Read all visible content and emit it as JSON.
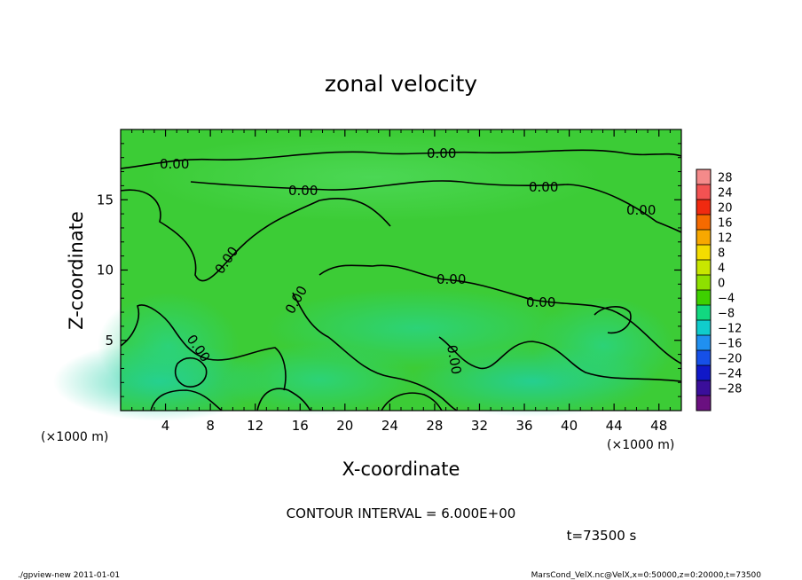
{
  "chart_data": {
    "type": "heatmap",
    "title": "zonal velocity",
    "xlabel": "X-coordinate",
    "ylabel": "Z-coordinate",
    "x_unit_note": "(×1000 m)",
    "y_unit_note": "(×1000 m)",
    "xlim": [
      0,
      50
    ],
    "ylim": [
      0,
      20
    ],
    "x_ticks": [
      4,
      8,
      12,
      16,
      20,
      24,
      28,
      32,
      36,
      40,
      44,
      48
    ],
    "y_ticks": [
      5,
      10,
      15
    ],
    "contour_label": "0.00",
    "colorbar_levels": [
      28,
      24,
      20,
      16,
      12,
      8,
      4,
      0,
      -4,
      -8,
      -12,
      -16,
      -20,
      -24,
      -28
    ],
    "colorbar_colors": [
      "#f48a8a",
      "#f25252",
      "#f02a10",
      "#f56a00",
      "#f8a800",
      "#f4dc00",
      "#c8e600",
      "#8ee000",
      "#3ed000",
      "#12d880",
      "#10cccc",
      "#2090f0",
      "#1650e8",
      "#1018c8",
      "#3a0e9a",
      "#6a1080"
    ],
    "background_color": "#3ccc36",
    "contour_interval_text": "CONTOUR INTERVAL = 6.000E+00",
    "time_text": "t=73500 s"
  },
  "footer": {
    "left": "./gpview-new  2011-01-01",
    "right": "MarsCond_VelX.nc@VelX,x=0:50000,z=0:20000,t=73500"
  }
}
